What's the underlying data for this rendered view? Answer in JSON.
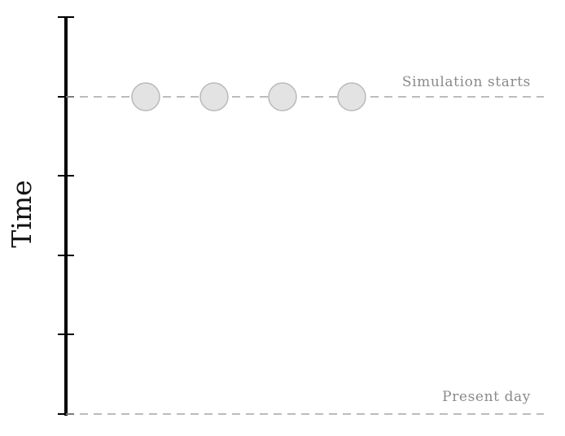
{
  "axis": {
    "title": "Time",
    "tick_count": 6
  },
  "markers": {
    "simulation_start": "Simulation starts",
    "present": "Present day"
  },
  "nodes": {
    "count": 4,
    "fill": "#e3e3e3",
    "stroke": "#b9b9b9"
  },
  "colors": {
    "axis": "#000000",
    "guide": "#a6a6a6",
    "label": "#8a8a8a"
  }
}
